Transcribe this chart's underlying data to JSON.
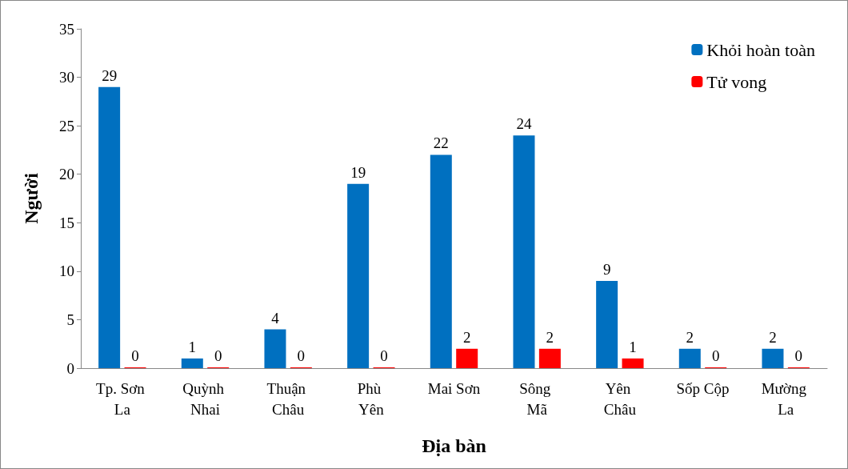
{
  "chart_data": {
    "type": "bar",
    "xlabel": "Địa bàn",
    "ylabel": "Người",
    "categories": [
      "Tp. Sơn La",
      "Quỳnh Nhai",
      "Thuận Châu",
      "Phù Yên",
      "Mai Sơn",
      "Sông Mã",
      "Yên Châu",
      "Sốp Cộp",
      "Mường La"
    ],
    "series": [
      {
        "name": "Khỏi hoàn toàn",
        "color": "#0070c0",
        "values": [
          29,
          1,
          4,
          19,
          22,
          24,
          9,
          2,
          2
        ]
      },
      {
        "name": "Tử vong",
        "color": "#ff0000",
        "values": [
          0,
          0,
          0,
          0,
          2,
          2,
          1,
          0,
          0
        ]
      }
    ],
    "ylim": [
      0,
      35
    ],
    "yticks": [
      0,
      5,
      10,
      15,
      20,
      25,
      30,
      35
    ],
    "grid": false,
    "legend": "top right",
    "data_labels": true
  }
}
